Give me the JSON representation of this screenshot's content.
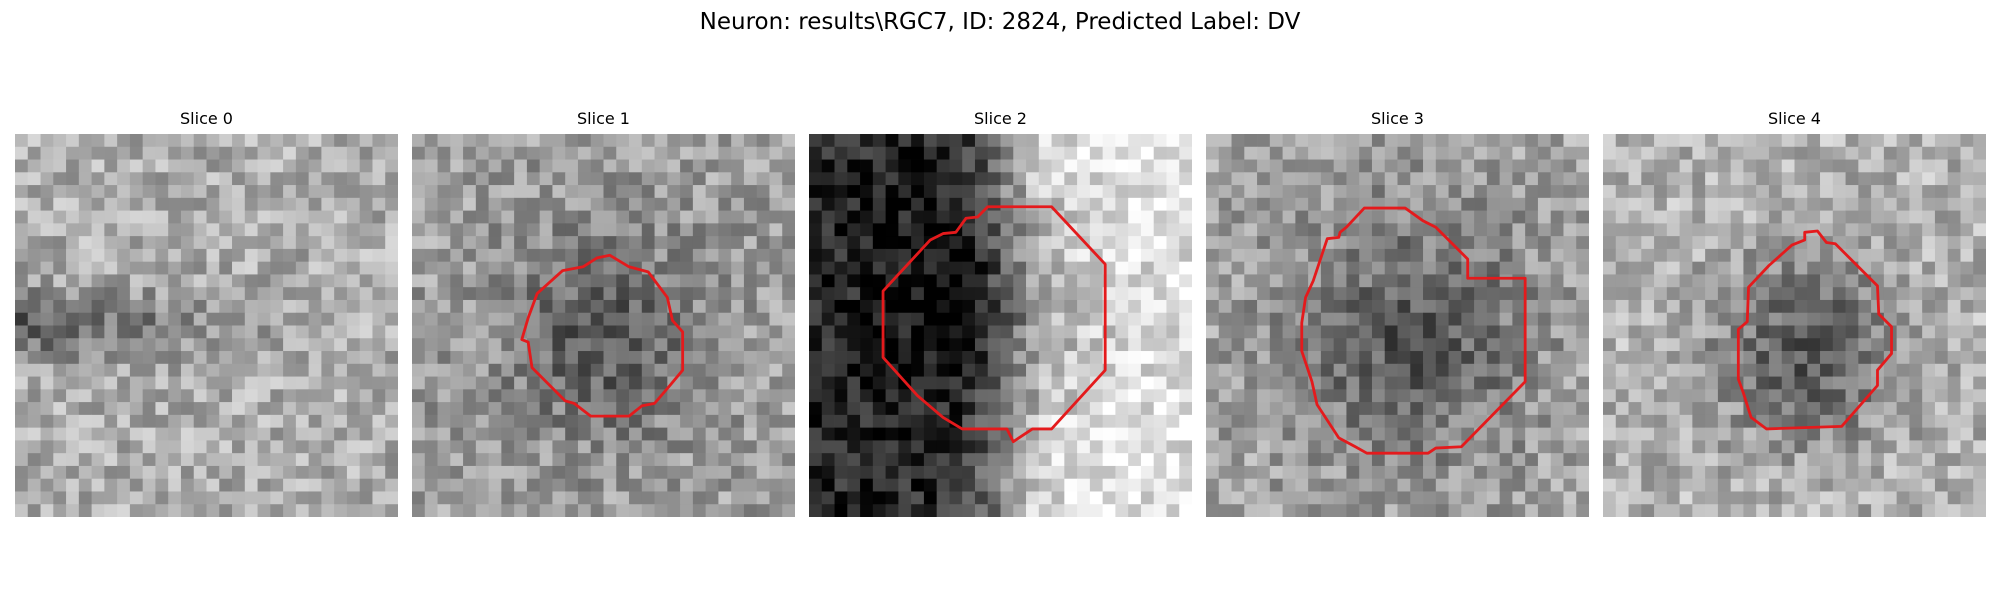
{
  "title": "Neuron: results\\RGC7, ID: 2824, Predicted Label: DV",
  "slices": [
    {
      "label": "Slice 0",
      "has_contour": false,
      "contour_color": "#e41a1c"
    },
    {
      "label": "Slice 1",
      "has_contour": true,
      "contour_color": "#e41a1c"
    },
    {
      "label": "Slice 2",
      "has_contour": true,
      "contour_color": "#e41a1c"
    },
    {
      "label": "Slice 3",
      "has_contour": true,
      "contour_color": "#e41a1c"
    },
    {
      "label": "Slice 4",
      "has_contour": true,
      "contour_color": "#e41a1c"
    }
  ],
  "colormap": "gray"
}
